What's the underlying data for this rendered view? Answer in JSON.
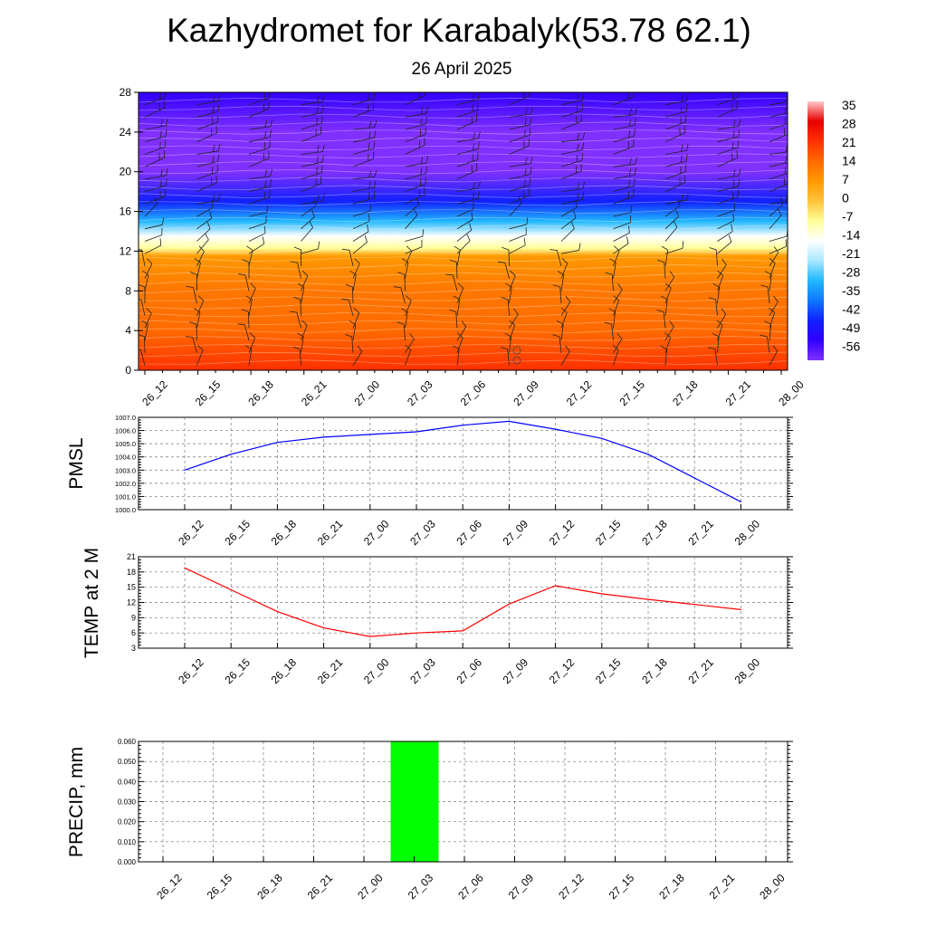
{
  "title": "Kazhydromet for Karabalyk(53.78 62.1)",
  "subtitle": "26 April 2025",
  "time_labels": [
    "26_12",
    "26_15",
    "26_18",
    "26_21",
    "27_00",
    "27_03",
    "27_06",
    "27_09",
    "27_12",
    "27_15",
    "27_18",
    "27_21",
    "28_00"
  ],
  "chart_data": [
    {
      "type": "heatmap",
      "description": "Temperature cross-section with wind barbs",
      "x": [
        "26_12",
        "26_15",
        "26_18",
        "26_21",
        "27_00",
        "27_03",
        "27_06",
        "27_09",
        "27_12",
        "27_15",
        "27_18",
        "27_21",
        "28_00"
      ],
      "ylim": [
        0,
        28
      ],
      "yticks": [
        0,
        4,
        8,
        12,
        16,
        20,
        24,
        28
      ],
      "colorbar": {
        "labels": [
          "35",
          "28",
          "21",
          "14",
          "7",
          "0",
          "-7",
          "-14",
          "-21",
          "-28",
          "-35",
          "-42",
          "-49",
          "-56"
        ],
        "colors": [
          "#ffc8c8",
          "#e80000",
          "#ff3000",
          "#ff6a00",
          "#ff9900",
          "#ffc33b",
          "#ffff99",
          "#ffffff",
          "#a8e8ff",
          "#20b8ff",
          "#1078ff",
          "#1020ff",
          "#3000ff",
          "#8030ff"
        ]
      },
      "temperature_profile": [
        {
          "level": 0,
          "value": 21
        },
        {
          "level": 4,
          "value": 14
        },
        {
          "level": 8,
          "value": 12
        },
        {
          "level": 11.5,
          "value": 7
        },
        {
          "level": 12.3,
          "value": -7
        },
        {
          "level": 13.5,
          "value": -14
        },
        {
          "level": 15,
          "value": -28
        },
        {
          "level": 17,
          "value": -42
        },
        {
          "level": 20,
          "value": -56
        },
        {
          "level": 24,
          "value": -56
        },
        {
          "level": 28,
          "value": -49
        }
      ]
    },
    {
      "type": "line",
      "ylabel": "PMSL",
      "x": [
        "26_12",
        "26_15",
        "26_18",
        "26_21",
        "27_00",
        "27_03",
        "27_06",
        "27_09",
        "27_12",
        "27_15",
        "27_18",
        "27_21",
        "28_00"
      ],
      "values": [
        1003.0,
        1004.2,
        1005.1,
        1005.5,
        1005.7,
        1005.9,
        1006.4,
        1006.7,
        1006.1,
        1005.4,
        1004.2,
        1002.4,
        1000.6
      ],
      "ylim": [
        1000.0,
        1007.0
      ],
      "yticks": [
        "1000.0",
        "1001.0",
        "1002.0",
        "1003.0",
        "1004.0",
        "1005.0",
        "1006.0",
        "1007.0"
      ],
      "color": "#0000ff"
    },
    {
      "type": "line",
      "ylabel": "TEMP at 2 M",
      "x": [
        "26_12",
        "26_15",
        "26_18",
        "26_21",
        "27_00",
        "27_03",
        "27_06",
        "27_09",
        "27_12",
        "27_15",
        "27_18",
        "27_21",
        "28_00"
      ],
      "values": [
        18.8,
        14.5,
        10.2,
        7.0,
        5.3,
        6.0,
        6.4,
        11.7,
        15.3,
        13.7,
        12.6,
        11.6,
        10.6
      ],
      "ylim": [
        3,
        21
      ],
      "yticks": [
        "3",
        "6",
        "9",
        "12",
        "15",
        "18",
        "21"
      ],
      "color": "#ff0000"
    },
    {
      "type": "bar",
      "ylabel": "PRECIP, mm",
      "categories": [
        "26_12",
        "26_15",
        "26_18",
        "26_21",
        "27_00",
        "27_03",
        "27_06",
        "27_09",
        "27_12",
        "27_15",
        "27_18",
        "27_21",
        "28_00"
      ],
      "values": [
        0,
        0,
        0,
        0,
        0,
        0.06,
        0,
        0,
        0,
        0,
        0,
        0,
        0
      ],
      "ylim": [
        0.0,
        0.06
      ],
      "yticks": [
        "0.000",
        "0.010",
        "0.020",
        "0.030",
        "0.040",
        "0.050",
        "0.060"
      ],
      "color": "#00ff00"
    }
  ]
}
